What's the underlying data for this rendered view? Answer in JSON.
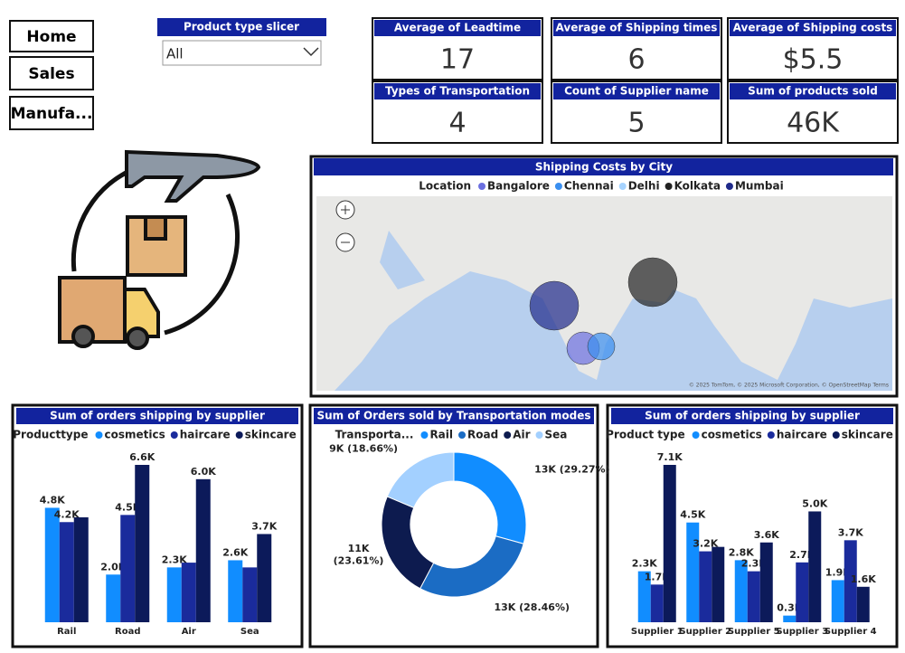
{
  "nav": [
    "Home",
    "Sales",
    "Manufa..."
  ],
  "slicer": {
    "title": "Product type slicer",
    "value": "All"
  },
  "cards": [
    {
      "title": "Average of Leadtime",
      "value": "17"
    },
    {
      "title": "Average of Shipping times",
      "value": "6"
    },
    {
      "title": "Average of Shipping costs",
      "value": "$5.5"
    },
    {
      "title": "Types of Transportation",
      "value": "4"
    },
    {
      "title": "Count of Supplier name",
      "value": "5"
    },
    {
      "title": "Sum of products sold",
      "value": "46K"
    }
  ],
  "map": {
    "title": "Shipping Costs by City",
    "legend_title": "Location",
    "locations": [
      "Bangalore",
      "Chennai",
      "Delhi",
      "Kolkata",
      "Mumbai"
    ],
    "colors": [
      "#6b6fe0",
      "#3a8ff0",
      "#a6d3ff",
      "#222222",
      "#1f2a8a"
    ],
    "attribution": "© 2025 TomTom, © 2025 Microsoft Corporation, © OpenStreetMap Terms"
  },
  "chart_data": [
    {
      "type": "bar",
      "title": "Sum of orders shipping by supplier",
      "legend_title": "Producttype",
      "categories": [
        "Rail",
        "Road",
        "Air",
        "Sea"
      ],
      "series": [
        {
          "name": "cosmetics",
          "color": "#118dff",
          "values": [
            4800,
            2000,
            2300,
            2600
          ],
          "value_labels": [
            "4.8K",
            "2.0K",
            "2.3K",
            "2.6K"
          ]
        },
        {
          "name": "haircare",
          "color": "#1a2b9c",
          "values": [
            4200,
            4500,
            2500,
            2300
          ],
          "value_labels": [
            "4.2K",
            "4.5K",
            null,
            null
          ]
        },
        {
          "name": "skincare",
          "color": "#0c1a5a",
          "values": [
            4400,
            6600,
            6000,
            3700
          ],
          "value_labels": [
            null,
            "6.6K",
            "6.0K",
            "3.7K"
          ]
        }
      ]
    },
    {
      "type": "donut",
      "title": "Sum of Orders sold by Transportation modes",
      "legend_title": "Transporta...",
      "categories": [
        "Rail",
        "Road",
        "Air",
        "Sea"
      ],
      "colors": [
        "#118dff",
        "#1b6cc4",
        "#0d1b4f",
        "#a3d0ff"
      ],
      "values": [
        29.27,
        28.46,
        23.61,
        18.66
      ],
      "value_labels": [
        "13K (29.27%)",
        "13K (28.46%)",
        "11K (23.61%)",
        "9K (18.66%)"
      ]
    },
    {
      "type": "bar",
      "title": "Sum of orders shipping by supplier",
      "legend_title": "Product type",
      "categories": [
        "Supplier 1",
        "Supplier 2",
        "Supplier 5",
        "Supplier 3",
        "Supplier 4"
      ],
      "series": [
        {
          "name": "cosmetics",
          "color": "#118dff",
          "values": [
            2300,
            4500,
            2800,
            300,
            1900
          ],
          "value_labels": [
            "2.3K",
            "4.5K",
            "2.8K",
            "0.3K",
            "1.9K"
          ]
        },
        {
          "name": "haircare",
          "color": "#1a2b9c",
          "values": [
            1700,
            3200,
            2300,
            2700,
            3700
          ],
          "value_labels": [
            "1.7K",
            "3.2K",
            "2.3K",
            "2.7K",
            "3.7K"
          ]
        },
        {
          "name": "skincare",
          "color": "#0c1a5a",
          "values": [
            7100,
            3400,
            3600,
            5000,
            1600
          ],
          "value_labels": [
            "7.1K",
            null,
            "3.6K",
            "5.0K",
            "1.6K"
          ]
        }
      ]
    }
  ]
}
